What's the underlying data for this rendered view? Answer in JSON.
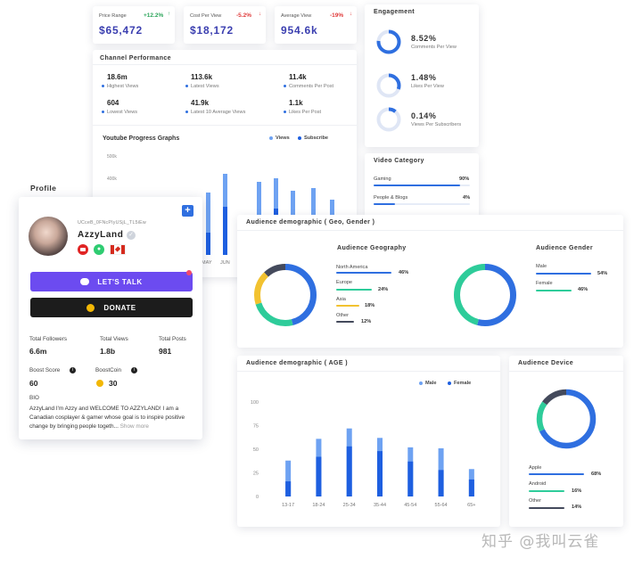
{
  "kpis": [
    {
      "label": "Price Range",
      "change": "+12.2%",
      "value": "$65,472",
      "dir": "up",
      "color": "#2ba55a"
    },
    {
      "label": "Cost Per View",
      "change": "-5.2%",
      "value": "$18,172",
      "dir": "down",
      "color": "#e03a3a"
    },
    {
      "label": "Average View",
      "change": "-19%",
      "value": "954.6k",
      "dir": "down",
      "color": "#e03a3a"
    }
  ],
  "engagement": {
    "title": "Engagement",
    "items": [
      {
        "value": "8.52%",
        "label": "Comments Per View"
      },
      {
        "value": "1.48%",
        "label": "Likes Per View"
      },
      {
        "value": "0.14%",
        "label": "Views Per Subscribers"
      }
    ]
  },
  "channel": {
    "title": "Channel Performance",
    "stats": [
      {
        "value": "18.6m",
        "label": "Highest Views"
      },
      {
        "value": "113.6k",
        "label": "Latest Views"
      },
      {
        "value": "11.4k",
        "label": "Comments Per Post"
      },
      {
        "value": "604",
        "label": "Lowest Views"
      },
      {
        "value": "41.9k",
        "label": "Latest 10 Average Views"
      },
      {
        "value": "1.1k",
        "label": "Likes Per Post"
      }
    ]
  },
  "youtube": {
    "title": "Youtube Progress Graphs",
    "legend": [
      "Views",
      "Subscribe"
    ],
    "ytick_top": "500k",
    "ytick_second": "400k",
    "xticks": [
      "MAY",
      "JUN"
    ]
  },
  "video_category": {
    "title": "Video Category",
    "items": [
      {
        "label": "Gaming",
        "pct": "90%",
        "fill": 0.9
      },
      {
        "label": "People & Blogs",
        "pct": "4%",
        "fill": 0.04
      }
    ]
  },
  "profile": {
    "title": "Profile",
    "channel_id": "UCceB_0FNcPIyUSjL_TL5iEw",
    "name": "AzzyLand",
    "lets_talk": "LET'S TALK",
    "donate": "DONATE",
    "stats": [
      {
        "label": "Total Followers",
        "value": "6.6m"
      },
      {
        "label": "Total Views",
        "value": "1.8b"
      },
      {
        "label": "Total Posts",
        "value": "981"
      }
    ],
    "boost_score_label": "Boost Score",
    "boost_score": "60",
    "boostcoin_label": "BoostCoin",
    "boostcoin": "30",
    "bio_label": "BIO",
    "bio_text": "AzzyLand I'm Azzy and WELCOME TO AZZYLAND! I am a Canadian cosplayer & gamer whose goal is to inspire positive change by bringing people togeth...",
    "show_more": "Show more"
  },
  "audience_geo": {
    "title": "Audience demographic ( Geo, Gender )",
    "geo_title": "Audience  Geography",
    "geo": [
      {
        "label": "North America",
        "pct": "46%",
        "color": "#2f6fe0",
        "fill": 0.46
      },
      {
        "label": "Europe",
        "pct": "24%",
        "color": "#2ecc9a",
        "fill": 0.24
      },
      {
        "label": "Asia",
        "pct": "18%",
        "color": "#f2c230",
        "fill": 0.18
      },
      {
        "label": "Other",
        "pct": "12%",
        "color": "#444a5c",
        "fill": 0.12
      }
    ],
    "gender_title": "Audience  Gender",
    "gender": [
      {
        "label": "Male",
        "pct": "54%",
        "color": "#2f6fe0",
        "fill": 0.54
      },
      {
        "label": "Female",
        "pct": "46%",
        "color": "#2ecc9a",
        "fill": 0.46
      }
    ]
  },
  "age_chart": {
    "title": "Audience demographic ( AGE )",
    "legend": [
      "Male",
      "Female"
    ],
    "chart_data": {
      "type": "bar",
      "categories": [
        "13-17",
        "18-24",
        "25-34",
        "35-44",
        "45-54",
        "55-64",
        "65+"
      ],
      "series": [
        {
          "name": "Male",
          "values": [
            38,
            61,
            72,
            62,
            52,
            51,
            29
          ]
        },
        {
          "name": "Female",
          "values": [
            16,
            42,
            53,
            48,
            37,
            28,
            18
          ]
        }
      ],
      "yticks": [
        0,
        25,
        50,
        75,
        100
      ],
      "ylim": [
        0,
        100
      ]
    }
  },
  "device": {
    "title": "Audience Device",
    "items": [
      {
        "label": "Apple",
        "pct": "68%",
        "color": "#2f6fe0",
        "fill": 0.68
      },
      {
        "label": "Android",
        "pct": "16%",
        "color": "#2ecc9a",
        "fill": 0.16
      },
      {
        "label": "Other",
        "pct": "14%",
        "color": "#444a5c",
        "fill": 0.14
      }
    ]
  },
  "watermark": "知乎 @我叫云雀"
}
